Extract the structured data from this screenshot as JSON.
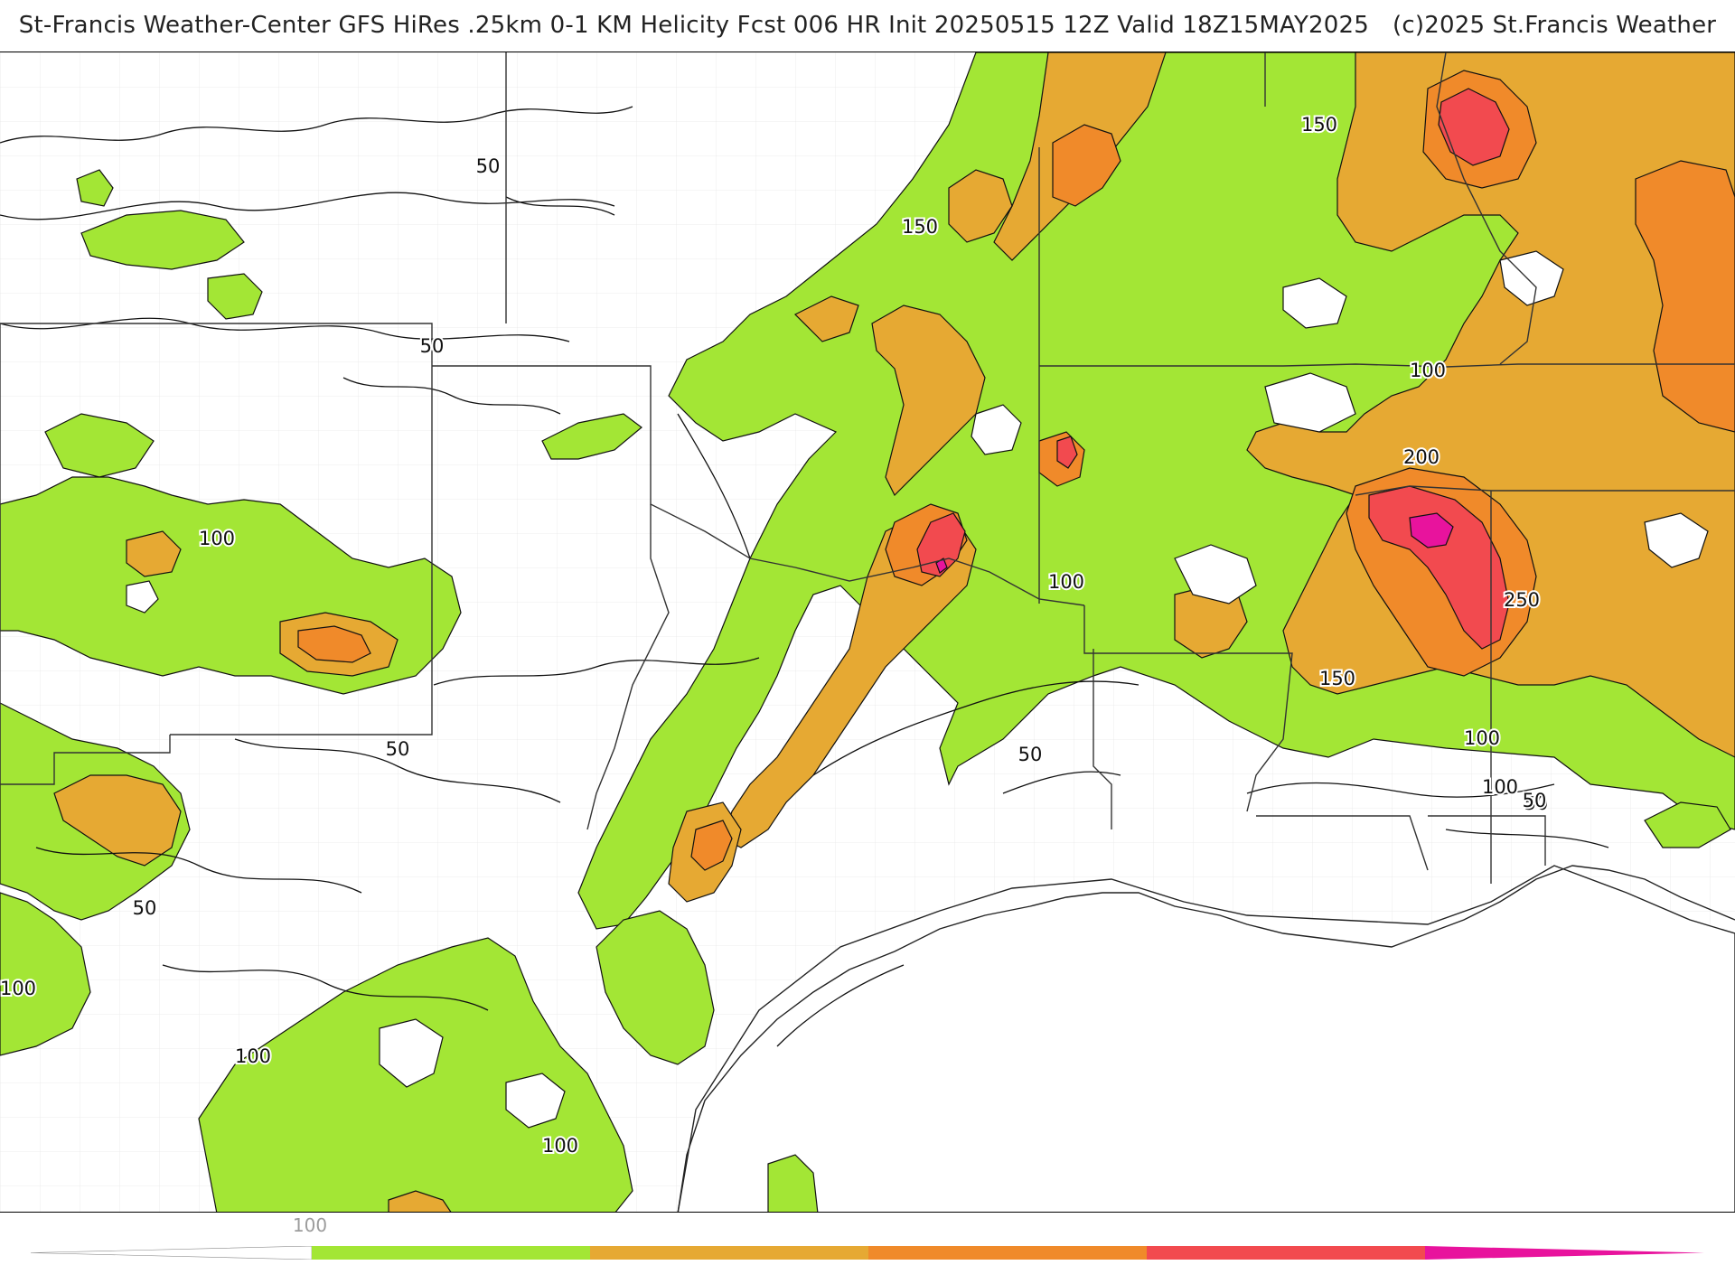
{
  "header": {
    "title": "St-Francis Weather-Center GFS HiRes .25km 0-1 KM Helicity Fcst 006 HR Init 20250515 12Z  Valid 18Z15MAY2025",
    "copyright": "(c)2025 St.Francis Weather"
  },
  "map": {
    "variable": "0-1 KM Helicity",
    "forecast_hour": "006",
    "init": "20250515 12Z",
    "valid": "18Z15MAY2025",
    "contour_labels": [
      "50",
      "150",
      "150",
      "50",
      "100",
      "100",
      "50",
      "50",
      "100",
      "200",
      "250",
      "150",
      "100",
      "50",
      "50",
      "100",
      "100",
      "100",
      "100",
      "50"
    ],
    "colors": {
      "green": "#a3e635",
      "light_orange": "#e6a933",
      "orange": "#f08a2a",
      "red": "#f24a4f",
      "magenta": "#e8139d",
      "contour": "#111111",
      "boundary": "#333333",
      "county": "#c8c8c8"
    }
  },
  "legend": {
    "tick_label": "100",
    "colors": [
      "#ffffff",
      "#a3e635",
      "#e6a933",
      "#f08a2a",
      "#f24a4f",
      "#e8139d"
    ]
  }
}
